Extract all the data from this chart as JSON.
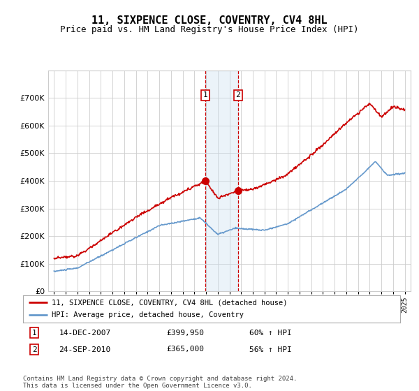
{
  "title": "11, SIXPENCE CLOSE, COVENTRY, CV4 8HL",
  "subtitle": "Price paid vs. HM Land Registry's House Price Index (HPI)",
  "hpi_label": "HPI: Average price, detached house, Coventry",
  "property_label": "11, SIXPENCE CLOSE, COVENTRY, CV4 8HL (detached house)",
  "sale1_date": "14-DEC-2007",
  "sale1_price": 399950,
  "sale1_pct": "60% ↑ HPI",
  "sale1_x": 2007.96,
  "sale2_date": "24-SEP-2010",
  "sale2_price": 365000,
  "sale2_pct": "56% ↑ HPI",
  "sale2_x": 2010.73,
  "footnote": "Contains HM Land Registry data © Crown copyright and database right 2024.\nThis data is licensed under the Open Government Licence v3.0.",
  "ylim": [
    0,
    800000
  ],
  "yticks": [
    0,
    100000,
    200000,
    300000,
    400000,
    500000,
    600000,
    700000
  ],
  "xlim_min": 1994.5,
  "xlim_max": 2025.5,
  "property_color": "#cc0000",
  "hpi_color": "#6699cc",
  "bg_color": "#ffffff",
  "grid_color": "#cccccc",
  "sale_marker_color": "#cc0000",
  "vline_color": "#cc0000",
  "shade_color": "#c8ddf0"
}
